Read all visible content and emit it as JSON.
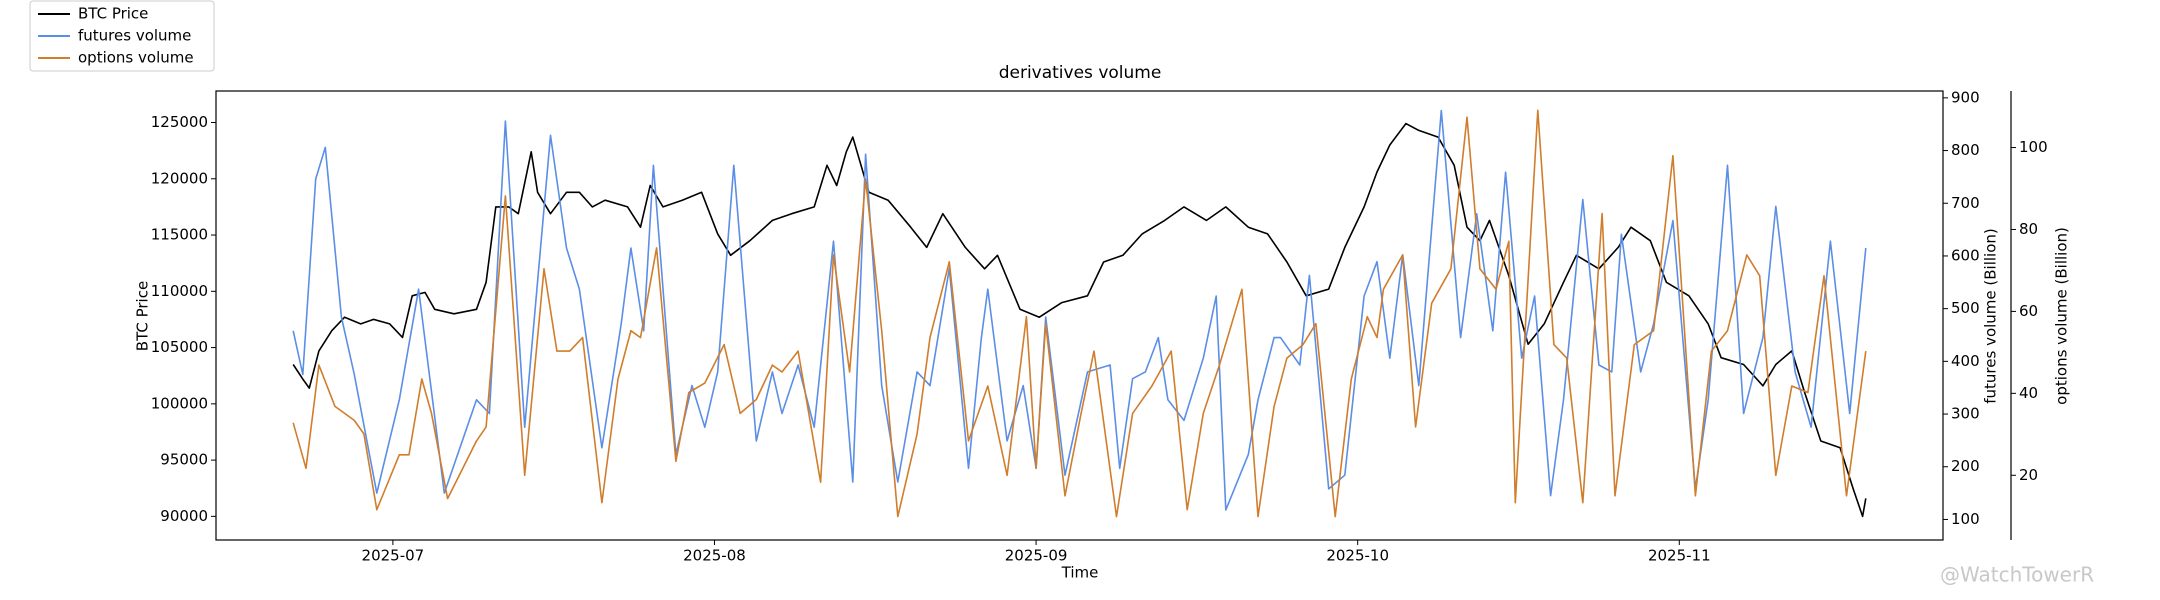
{
  "chart_data": {
    "type": "line",
    "title": "derivatives volume",
    "xlabel": "Time",
    "ylabel": "BTC Price",
    "y2label": "futures volume (Billion)",
    "y3label": "options volume (Billion)",
    "watermark": "@WatchTowerR",
    "legend": "upper left",
    "xlim": [
      6.45,
      11.82
    ],
    "xticks": [
      {
        "value": 7,
        "label": "2025-07"
      },
      {
        "value": 8,
        "label": "2025-08"
      },
      {
        "value": 9,
        "label": "2025-09"
      },
      {
        "value": 10,
        "label": "2025-10"
      },
      {
        "value": 11,
        "label": "2025-11"
      }
    ],
    "ylim": [
      87900,
      127800
    ],
    "yticks": [
      90000,
      95000,
      100000,
      105000,
      110000,
      115000,
      120000,
      125000
    ],
    "y2lim": [
      61,
      913
    ],
    "y2ticks": [
      100,
      200,
      300,
      400,
      500,
      600,
      700,
      800,
      900
    ],
    "y3lim": [
      4.2,
      113.8
    ],
    "y3ticks": [
      20,
      40,
      60,
      80,
      100
    ],
    "series": [
      {
        "name": "BTC Price",
        "color": "#000000",
        "axis": "y",
        "x": [
          6.69,
          6.72,
          6.74,
          6.77,
          6.81,
          6.85,
          6.9,
          6.94,
          6.99,
          7.03,
          7.06,
          7.1,
          7.13,
          7.19,
          7.26,
          7.29,
          7.32,
          7.36,
          7.39,
          7.43,
          7.45,
          7.49,
          7.54,
          7.58,
          7.62,
          7.66,
          7.73,
          7.77,
          7.8,
          7.84,
          7.9,
          7.96,
          8.01,
          8.05,
          8.11,
          8.18,
          8.24,
          8.31,
          8.35,
          8.38,
          8.41,
          8.43,
          8.48,
          8.54,
          8.61,
          8.66,
          8.71,
          8.78,
          8.84,
          8.88,
          8.95,
          9.01,
          9.08,
          9.16,
          9.21,
          9.27,
          9.33,
          9.4,
          9.46,
          9.53,
          9.59,
          9.66,
          9.72,
          9.78,
          9.84,
          9.91,
          9.96,
          10.02,
          10.06,
          10.1,
          10.15,
          10.19,
          10.25,
          10.3,
          10.34,
          10.38,
          10.41,
          10.47,
          10.53,
          10.58,
          10.64,
          10.68,
          10.75,
          10.81,
          10.85,
          10.91,
          10.96,
          11.03,
          11.09,
          11.13,
          11.2,
          11.26,
          11.3,
          11.35,
          11.39,
          11.44,
          11.5,
          11.54,
          11.57,
          11.58
        ],
        "values": [
          103500,
          102200,
          101400,
          104700,
          106500,
          107700,
          107100,
          107500,
          107100,
          105900,
          109600,
          109900,
          108400,
          108000,
          108400,
          110800,
          117500,
          117500,
          116900,
          122400,
          118800,
          116900,
          118800,
          118800,
          117500,
          118100,
          117500,
          115700,
          119400,
          117500,
          118100,
          118800,
          115100,
          113200,
          114500,
          116300,
          116900,
          117500,
          121200,
          119400,
          122400,
          123700,
          118800,
          118100,
          115700,
          113900,
          116900,
          113900,
          112000,
          113200,
          108400,
          107700,
          109000,
          109600,
          112600,
          113200,
          115100,
          116300,
          117500,
          116300,
          117500,
          115700,
          115100,
          112600,
          109600,
          110200,
          113900,
          117500,
          120600,
          123000,
          124900,
          124300,
          123700,
          121200,
          115700,
          114500,
          116300,
          111400,
          105300,
          107100,
          110800,
          113200,
          112000,
          113900,
          115700,
          114500,
          110800,
          109600,
          107100,
          104100,
          103500,
          101600,
          103500,
          104700,
          101000,
          96700,
          96100,
          92500,
          90000,
          91600
        ]
      },
      {
        "name": "futures volume",
        "color": "#5b8ee6",
        "axis": "y2",
        "x": [
          6.69,
          6.72,
          6.76,
          6.79,
          6.84,
          6.88,
          6.95,
          7.02,
          7.08,
          7.16,
          7.26,
          7.3,
          7.35,
          7.41,
          7.49,
          7.54,
          7.58,
          7.65,
          7.71,
          7.74,
          7.78,
          7.81,
          7.88,
          7.93,
          7.97,
          8.01,
          8.06,
          8.13,
          8.18,
          8.21,
          8.26,
          8.31,
          8.37,
          8.43,
          8.47,
          8.52,
          8.57,
          8.63,
          8.67,
          8.73,
          8.79,
          8.83,
          8.85,
          8.91,
          8.96,
          9.0,
          9.03,
          9.09,
          9.16,
          9.23,
          9.26,
          9.3,
          9.34,
          9.38,
          9.41,
          9.46,
          9.52,
          9.56,
          9.59,
          9.66,
          9.69,
          9.74,
          9.76,
          9.82,
          9.85,
          9.91,
          9.96,
          10.02,
          10.06,
          10.1,
          10.14,
          10.19,
          10.26,
          10.32,
          10.37,
          10.42,
          10.46,
          10.51,
          10.55,
          10.6,
          10.64,
          10.7,
          10.75,
          10.79,
          10.82,
          10.88,
          10.92,
          10.98,
          11.05,
          11.09,
          11.15,
          11.2,
          11.26,
          11.3,
          11.36,
          11.41,
          11.47,
          11.53,
          11.58
        ],
        "values": [
          458,
          375,
          746,
          806,
          484,
          375,
          150,
          327,
          537,
          150,
          327,
          301,
          856,
          275,
          829,
          615,
          537,
          236,
          471,
          615,
          458,
          772,
          223,
          354,
          275,
          380,
          772,
          249,
          380,
          301,
          393,
          275,
          628,
          171,
          793,
          354,
          171,
          380,
          354,
          576,
          197,
          445,
          537,
          249,
          354,
          197,
          484,
          184,
          380,
          393,
          197,
          367,
          380,
          445,
          327,
          288,
          406,
          524,
          118,
          223,
          327,
          445,
          445,
          393,
          563,
          158,
          184,
          524,
          589,
          406,
          602,
          354,
          876,
          445,
          680,
          458,
          759,
          406,
          524,
          145,
          327,
          707,
          393,
          380,
          641,
          380,
          471,
          667,
          158,
          327,
          772,
          301,
          445,
          694,
          380,
          275,
          628,
          301,
          615
        ]
      },
      {
        "name": "options volume",
        "color": "#d07d2c",
        "axis": "y3",
        "x": [
          6.69,
          6.73,
          6.77,
          6.82,
          6.88,
          6.91,
          6.95,
          7.02,
          7.05,
          7.09,
          7.12,
          7.17,
          7.26,
          7.29,
          7.35,
          7.41,
          7.47,
          7.51,
          7.55,
          7.59,
          7.65,
          7.7,
          7.74,
          7.77,
          7.82,
          7.88,
          7.92,
          7.97,
          8.03,
          8.08,
          8.13,
          8.18,
          8.21,
          8.26,
          8.33,
          8.37,
          8.42,
          8.47,
          8.52,
          8.57,
          8.63,
          8.67,
          8.73,
          8.79,
          8.82,
          8.85,
          8.91,
          8.97,
          9.0,
          9.03,
          9.09,
          9.14,
          9.18,
          9.25,
          9.3,
          9.36,
          9.42,
          9.47,
          9.52,
          9.57,
          9.64,
          9.69,
          9.74,
          9.78,
          9.83,
          9.87,
          9.93,
          9.98,
          10.03,
          10.06,
          10.08,
          10.14,
          10.18,
          10.23,
          10.29,
          10.34,
          10.38,
          10.43,
          10.47,
          10.49,
          10.56,
          10.61,
          10.65,
          10.7,
          10.76,
          10.8,
          10.86,
          10.92,
          10.98,
          11.05,
          11.1,
          11.15,
          11.21,
          11.25,
          11.3,
          11.35,
          11.4,
          11.45,
          11.52,
          11.58
        ],
        "values": [
          32.8,
          21.7,
          46.9,
          36.8,
          33.4,
          30.1,
          11.6,
          25.0,
          25.0,
          43.5,
          35.1,
          14.3,
          28.4,
          31.8,
          88.2,
          20.0,
          70.4,
          50.3,
          50.3,
          53.6,
          13.3,
          43.5,
          55.3,
          53.6,
          75.5,
          23.4,
          40.2,
          42.5,
          51.9,
          35.1,
          38.5,
          46.9,
          45.2,
          50.3,
          18.3,
          73.8,
          45.2,
          92.3,
          55.3,
          9.9,
          30.1,
          53.6,
          72.1,
          28.4,
          35.1,
          41.8,
          20.0,
          58.7,
          21.7,
          57.0,
          15.0,
          35.1,
          50.3,
          9.9,
          35.1,
          41.8,
          50.3,
          11.6,
          35.1,
          46.9,
          65.4,
          9.9,
          36.8,
          48.6,
          51.9,
          57.0,
          9.9,
          43.5,
          58.7,
          53.6,
          65.4,
          73.8,
          31.8,
          62.0,
          70.4,
          107.4,
          70.4,
          65.4,
          77.1,
          13.3,
          109.1,
          51.9,
          48.6,
          13.3,
          83.9,
          15.0,
          51.9,
          55.3,
          98.0,
          15.0,
          50.3,
          55.3,
          73.8,
          68.7,
          20.0,
          41.8,
          40.2,
          68.7,
          15.0,
          50.3
        ]
      }
    ]
  }
}
